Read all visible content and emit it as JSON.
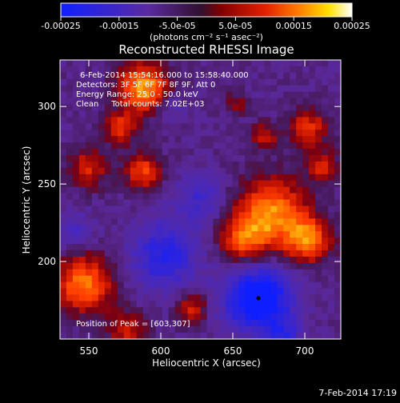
{
  "colorbar": {
    "tick_labels": [
      "-0.00025",
      "-0.00015",
      "-5.0e-05",
      "5.0e-05",
      "0.00015",
      "0.00025"
    ],
    "units_label": "(photons cm⁻² s⁻¹ asec⁻²)",
    "colors": [
      "#1020ff",
      "#5a2aa0",
      "#3a1a3a",
      "#8a0000",
      "#e02000",
      "#ff8000",
      "#ffe000",
      "#ffffff"
    ]
  },
  "image": {
    "title": "Reconstructed RHESSI Image",
    "info_lines": [
      "6-Feb-2014 15:54:16.000 to 15:58:40.000",
      "Detectors: 3F 5F 6F 7F 8F 9F, Att 0",
      "Energy Range: 25.0 - 50.0 keV",
      "Clean     Total counts: 7.02E+03"
    ],
    "peak_label": "Position of Peak = [603,307]",
    "xlabel": "Heliocentric X (arcsec)",
    "ylabel": "Heliocentric Y (arcsec)",
    "x_tick_labels": [
      "550",
      "600",
      "650",
      "700"
    ],
    "y_tick_labels": [
      "200",
      "250",
      "300"
    ],
    "x_range": [
      530,
      725
    ],
    "y_range": [
      150,
      330
    ]
  },
  "footer": {
    "timestamp": "7-Feb-2014 17:19"
  }
}
